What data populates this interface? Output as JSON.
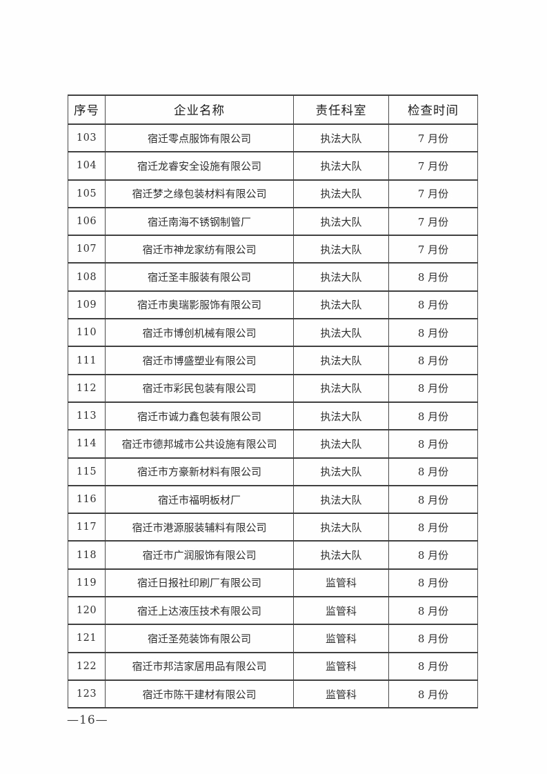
{
  "page": {
    "number_label": "—16—"
  },
  "table": {
    "headers": [
      "序号",
      "企业名称",
      "责任科室",
      "检查时间"
    ],
    "rows": [
      {
        "no": "103",
        "company": "宿迁零点服饰有限公司",
        "department": "执法大队",
        "time": "7 月份"
      },
      {
        "no": "104",
        "company": "宿迁龙睿安全设施有限公司",
        "department": "执法大队",
        "time": "7 月份"
      },
      {
        "no": "105",
        "company": "宿迁梦之缘包装材料有限公司",
        "department": "执法大队",
        "time": "7 月份"
      },
      {
        "no": "106",
        "company": "宿迁南海不锈钢制管厂",
        "department": "执法大队",
        "time": "7 月份"
      },
      {
        "no": "107",
        "company": "宿迁市神龙家纺有限公司",
        "department": "执法大队",
        "time": "7 月份"
      },
      {
        "no": "108",
        "company": "宿迁圣丰服装有限公司",
        "department": "执法大队",
        "time": "8 月份"
      },
      {
        "no": "109",
        "company": "宿迁市奥瑞影服饰有限公司",
        "department": "执法大队",
        "time": "8 月份"
      },
      {
        "no": "110",
        "company": "宿迁市博创机械有限公司",
        "department": "执法大队",
        "time": "8 月份"
      },
      {
        "no": "111",
        "company": "宿迁市博盛塑业有限公司",
        "department": "执法大队",
        "time": "8 月份"
      },
      {
        "no": "112",
        "company": "宿迁市彩民包装有限公司",
        "department": "执法大队",
        "time": "8 月份"
      },
      {
        "no": "113",
        "company": "宿迁市诚力鑫包装有限公司",
        "department": "执法大队",
        "time": "8 月份"
      },
      {
        "no": "114",
        "company": "宿迁市德邦城市公共设施有限公司",
        "department": "执法大队",
        "time": "8 月份"
      },
      {
        "no": "115",
        "company": "宿迁市方豪新材料有限公司",
        "department": "执法大队",
        "time": "8 月份"
      },
      {
        "no": "116",
        "company": "宿迁市福明板材厂",
        "department": "执法大队",
        "time": "8 月份"
      },
      {
        "no": "117",
        "company": "宿迁市港源服装辅料有限公司",
        "department": "执法大队",
        "time": "8 月份"
      },
      {
        "no": "118",
        "company": "宿迁市广润服饰有限公司",
        "department": "执法大队",
        "time": "8 月份"
      },
      {
        "no": "119",
        "company": "宿迁日报社印刷厂有限公司",
        "department": "监管科",
        "time": "8 月份"
      },
      {
        "no": "120",
        "company": "宿迁上达液压技术有限公司",
        "department": "监管科",
        "time": "8 月份"
      },
      {
        "no": "121",
        "company": "宿迁圣苑装饰有限公司",
        "department": "监管科",
        "time": "8 月份"
      },
      {
        "no": "122",
        "company": "宿迁市邦洁家居用品有限公司",
        "department": "监管科",
        "time": "8 月份"
      },
      {
        "no": "123",
        "company": "宿迁市陈干建材有限公司",
        "department": "监管科",
        "time": "8 月份"
      }
    ]
  }
}
